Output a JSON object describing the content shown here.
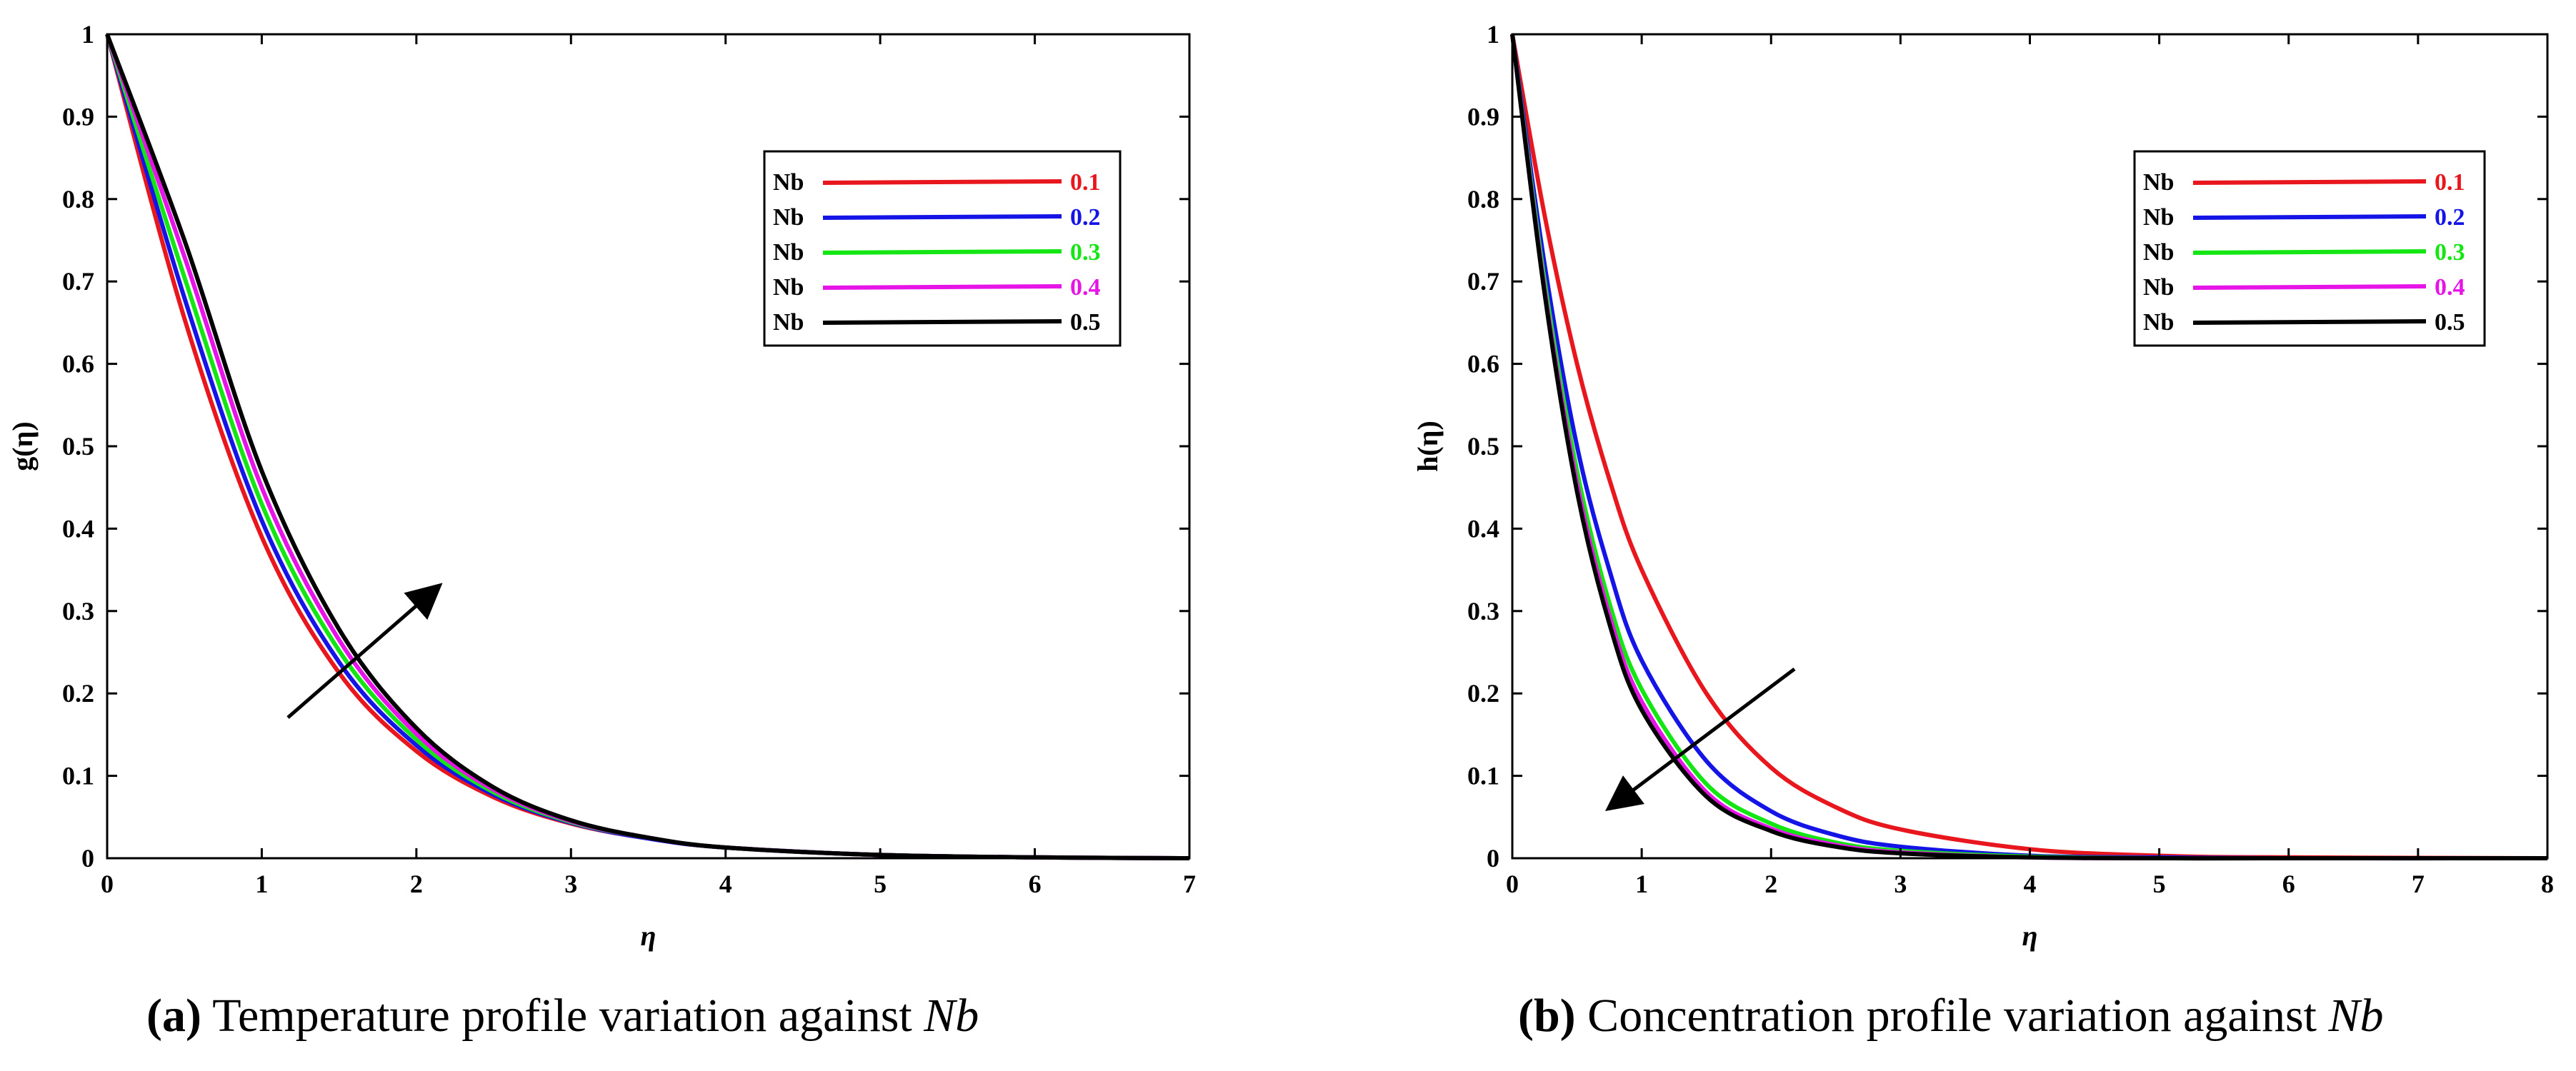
{
  "colors": {
    "red": "#e8171e",
    "blue": "#1414e6",
    "green": "#14e614",
    "magenta": "#e614e6",
    "black": "#000000"
  },
  "captions": [
    {
      "label": "(a)",
      "text": " Temperature profile variation against ",
      "param": "Nb"
    },
    {
      "label": "(b)",
      "text": " Concentration profile variation against ",
      "param": "Nb"
    }
  ],
  "chart_data": [
    {
      "type": "line",
      "xlabel": "η",
      "ylabel": "g(η)",
      "xlim": [
        0,
        7
      ],
      "ylim": [
        0,
        1
      ],
      "xticks": [
        "0",
        "1",
        "2",
        "3",
        "4",
        "5",
        "6",
        "7"
      ],
      "yticks": [
        "0",
        "0.1",
        "0.2",
        "0.3",
        "0.4",
        "0.5",
        "0.6",
        "0.7",
        "0.8",
        "0.9",
        "1"
      ],
      "legend_position": "top-right",
      "annotation": "arrow pointing up-right (increasing Nb)",
      "series": [
        {
          "name": "Nb",
          "value_label": "0.1",
          "color": "red",
          "x": [
            0,
            0.5,
            1,
            1.5,
            2,
            2.5,
            3,
            3.5,
            4,
            5,
            6,
            7
          ],
          "y": [
            1,
            0.655,
            0.39,
            0.225,
            0.13,
            0.074,
            0.042,
            0.024,
            0.013,
            0.004,
            0.001,
            0
          ]
        },
        {
          "name": "Nb",
          "value_label": "0.2",
          "color": "blue",
          "x": [
            0,
            0.5,
            1,
            1.5,
            2,
            2.5,
            3,
            3.5,
            4,
            5,
            6,
            7
          ],
          "y": [
            1,
            0.68,
            0.41,
            0.238,
            0.137,
            0.077,
            0.043,
            0.024,
            0.013,
            0.004,
            0.001,
            0
          ]
        },
        {
          "name": "Nb",
          "value_label": "0.3",
          "color": "green",
          "x": [
            0,
            0.5,
            1,
            1.5,
            2,
            2.5,
            3,
            3.5,
            4,
            5,
            6,
            7
          ],
          "y": [
            1,
            0.705,
            0.43,
            0.252,
            0.144,
            0.08,
            0.044,
            0.025,
            0.013,
            0.004,
            0.001,
            0
          ]
        },
        {
          "name": "Nb",
          "value_label": "0.4",
          "color": "magenta",
          "x": [
            0,
            0.5,
            1,
            1.5,
            2,
            2.5,
            3,
            3.5,
            4,
            5,
            6,
            7
          ],
          "y": [
            1,
            0.73,
            0.45,
            0.265,
            0.151,
            0.083,
            0.045,
            0.025,
            0.013,
            0.004,
            0.001,
            0
          ]
        },
        {
          "name": "Nb",
          "value_label": "0.5",
          "color": "black",
          "x": [
            0,
            0.5,
            1,
            1.5,
            2,
            2.5,
            3,
            3.5,
            4,
            5,
            6,
            7
          ],
          "y": [
            1,
            0.75,
            0.47,
            0.278,
            0.158,
            0.086,
            0.046,
            0.025,
            0.013,
            0.004,
            0.001,
            0
          ]
        }
      ]
    },
    {
      "type": "line",
      "xlabel": "η",
      "ylabel": "h(η)",
      "xlim": [
        0,
        8
      ],
      "ylim": [
        0,
        1
      ],
      "xticks": [
        "0",
        "1",
        "2",
        "3",
        "4",
        "5",
        "6",
        "7",
        "8"
      ],
      "yticks": [
        "0",
        "0.1",
        "0.2",
        "0.3",
        "0.4",
        "0.5",
        "0.6",
        "0.7",
        "0.8",
        "0.9",
        "1"
      ],
      "legend_position": "top-right",
      "annotation": "arrow pointing down-left (increasing Nb)",
      "series": [
        {
          "name": "Nb",
          "value_label": "0.1",
          "color": "red",
          "x": [
            0,
            0.25,
            0.5,
            0.75,
            1,
            1.5,
            2,
            2.5,
            3,
            4,
            5,
            6,
            8
          ],
          "y": [
            1,
            0.78,
            0.6,
            0.46,
            0.35,
            0.2,
            0.11,
            0.062,
            0.035,
            0.011,
            0.003,
            0.001,
            0
          ]
        },
        {
          "name": "Nb",
          "value_label": "0.2",
          "color": "blue",
          "x": [
            0,
            0.25,
            0.5,
            0.75,
            1,
            1.5,
            2,
            2.5,
            3,
            4,
            5,
            6,
            8
          ],
          "y": [
            1,
            0.72,
            0.5,
            0.35,
            0.24,
            0.118,
            0.057,
            0.028,
            0.014,
            0.003,
            0.001,
            0,
            0
          ]
        },
        {
          "name": "Nb",
          "value_label": "0.3",
          "color": "green",
          "x": [
            0,
            0.25,
            0.5,
            0.75,
            1,
            1.5,
            2,
            2.5,
            3,
            4,
            5,
            6,
            8
          ],
          "y": [
            1,
            0.7,
            0.47,
            0.31,
            0.205,
            0.09,
            0.042,
            0.019,
            0.009,
            0.002,
            0,
            0,
            0
          ]
        },
        {
          "name": "Nb",
          "value_label": "0.4",
          "color": "magenta",
          "x": [
            0,
            0.25,
            0.5,
            0.75,
            1,
            1.5,
            2,
            2.5,
            3,
            4,
            5,
            6,
            8
          ],
          "y": [
            1,
            0.69,
            0.455,
            0.295,
            0.19,
            0.08,
            0.036,
            0.016,
            0.007,
            0.001,
            0,
            0,
            0
          ]
        },
        {
          "name": "Nb",
          "value_label": "0.5",
          "color": "black",
          "x": [
            0,
            0.25,
            0.5,
            0.75,
            1,
            1.5,
            2,
            2.5,
            3,
            4,
            5,
            6,
            8
          ],
          "y": [
            1,
            0.685,
            0.445,
            0.285,
            0.18,
            0.075,
            0.033,
            0.014,
            0.006,
            0.001,
            0,
            0,
            0
          ]
        }
      ]
    }
  ]
}
